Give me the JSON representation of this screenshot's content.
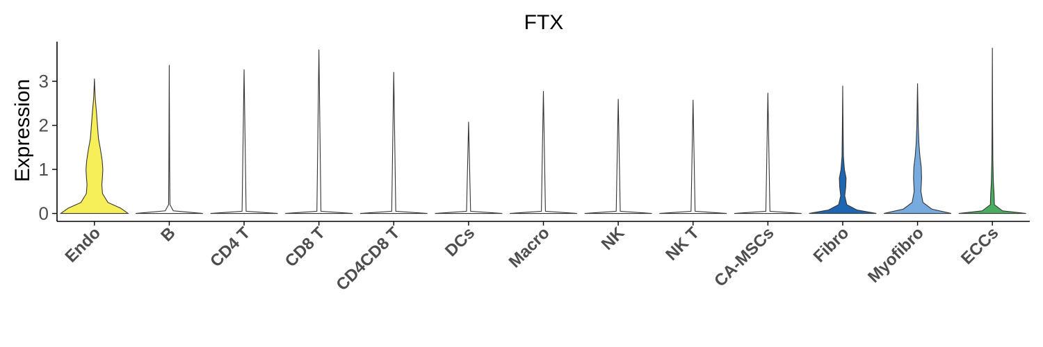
{
  "chart_data": {
    "type": "violin",
    "title": "FTX",
    "ylabel": "Expression",
    "xlabel": "",
    "ylim": [
      -0.18,
      3.9
    ],
    "yticks": [
      0,
      1,
      2,
      3
    ],
    "grid": false,
    "legend": "none",
    "categories": [
      "Endo",
      "B",
      "CD4 T",
      "CD8 T",
      "CD4CD8 T",
      "DCs",
      "Macro",
      "NK",
      "NK T",
      "CA-MSCs",
      "Fibro",
      "Myofibro",
      "ECCs"
    ],
    "fill_colors": [
      "#f7ef5a",
      "#ffffff",
      "#ffffff",
      "#ffffff",
      "#ffffff",
      "#ffffff",
      "#ffffff",
      "#ffffff",
      "#ffffff",
      "#ffffff",
      "#1f66b2",
      "#77abe0",
      "#4aac5e"
    ],
    "max_values": [
      3.06,
      3.37,
      3.27,
      3.72,
      3.21,
      2.08,
      2.78,
      2.6,
      2.58,
      2.74,
      2.9,
      2.95,
      3.76
    ],
    "density_profiles": [
      [
        [
          0,
          1.0
        ],
        [
          0.12,
          0.78
        ],
        [
          0.25,
          0.4
        ],
        [
          0.45,
          0.24
        ],
        [
          0.65,
          0.22
        ],
        [
          0.85,
          0.24
        ],
        [
          1.0,
          0.25
        ],
        [
          1.2,
          0.23
        ],
        [
          1.45,
          0.18
        ],
        [
          1.7,
          0.12
        ],
        [
          2.0,
          0.09
        ],
        [
          2.3,
          0.06
        ],
        [
          2.6,
          0.025
        ],
        [
          2.85,
          0.01
        ],
        [
          3.06,
          0.0
        ]
      ],
      [
        [
          0,
          1.0
        ],
        [
          0.06,
          0.12
        ],
        [
          0.2,
          0.02
        ],
        [
          1.0,
          0.012
        ],
        [
          3.37,
          0.0
        ]
      ],
      [
        [
          0,
          1.0
        ],
        [
          0.05,
          0.06
        ],
        [
          3.27,
          0.0
        ]
      ],
      [
        [
          0,
          1.0
        ],
        [
          0.05,
          0.06
        ],
        [
          3.72,
          0.0
        ]
      ],
      [
        [
          0,
          1.0
        ],
        [
          0.05,
          0.06
        ],
        [
          3.21,
          0.0
        ]
      ],
      [
        [
          0,
          1.0
        ],
        [
          0.05,
          0.06
        ],
        [
          2.08,
          0.0
        ]
      ],
      [
        [
          0,
          1.0
        ],
        [
          0.05,
          0.06
        ],
        [
          2.78,
          0.0
        ]
      ],
      [
        [
          0,
          1.0
        ],
        [
          0.05,
          0.06
        ],
        [
          2.6,
          0.0
        ]
      ],
      [
        [
          0,
          1.0
        ],
        [
          0.05,
          0.06
        ],
        [
          2.58,
          0.0
        ]
      ],
      [
        [
          0,
          1.0
        ],
        [
          0.05,
          0.06
        ],
        [
          2.74,
          0.0
        ]
      ],
      [
        [
          0,
          1.0
        ],
        [
          0.08,
          0.42
        ],
        [
          0.2,
          0.12
        ],
        [
          0.4,
          0.06
        ],
        [
          0.6,
          0.09
        ],
        [
          0.8,
          0.1
        ],
        [
          1.0,
          0.05
        ],
        [
          1.3,
          0.02
        ],
        [
          2.0,
          0.01
        ],
        [
          2.9,
          0.0
        ]
      ],
      [
        [
          0,
          1.0
        ],
        [
          0.1,
          0.42
        ],
        [
          0.25,
          0.16
        ],
        [
          0.5,
          0.1
        ],
        [
          0.8,
          0.12
        ],
        [
          1.05,
          0.11
        ],
        [
          1.3,
          0.07
        ],
        [
          1.6,
          0.04
        ],
        [
          2.0,
          0.02
        ],
        [
          2.5,
          0.01
        ],
        [
          2.95,
          0.0
        ]
      ],
      [
        [
          0,
          1.0
        ],
        [
          0.06,
          0.3
        ],
        [
          0.2,
          0.06
        ],
        [
          0.45,
          0.05
        ],
        [
          0.7,
          0.03
        ],
        [
          1.2,
          0.015
        ],
        [
          2.0,
          0.008
        ],
        [
          3.76,
          0.0
        ]
      ]
    ]
  }
}
